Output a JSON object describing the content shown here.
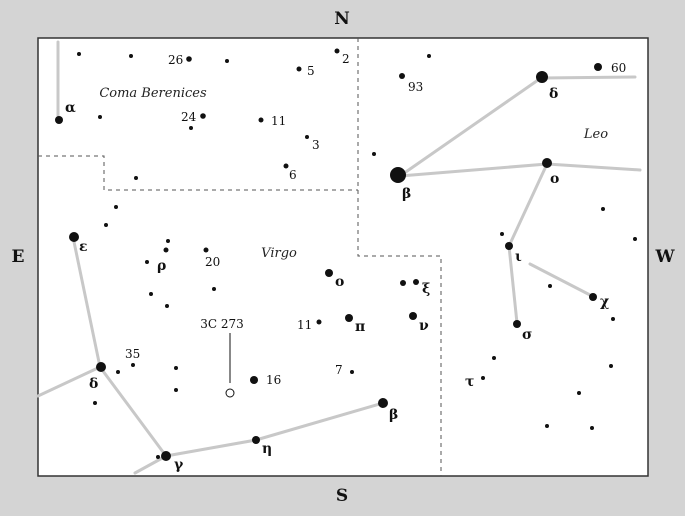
{
  "compass": {
    "north": "N",
    "south": "S",
    "east": "E",
    "west": "W"
  },
  "constellations": {
    "coma": "Coma Berenices",
    "leo": "Leo",
    "virgo": "Virgo"
  },
  "quasar": {
    "label": "3C 273"
  },
  "labels": {
    "alpha": "α",
    "num26": "26",
    "num5": "5",
    "num2": "2",
    "num93": "93",
    "delta_leo": "δ",
    "num60": "60",
    "num24": "24",
    "num11_coma": "11",
    "num3": "3",
    "num6": "6",
    "beta_leo": "β",
    "omicron_leo": "ο",
    "epsilon": "ε",
    "rho": "ρ",
    "num20": "20",
    "omicron_vir": "ο",
    "xi": "ξ",
    "iota": "ι",
    "chi": "χ",
    "num11_vir": "11",
    "pi": "π",
    "nu": "ν",
    "sigma": "σ",
    "num35": "35",
    "delta_vir": "δ",
    "num7": "7",
    "tau": "τ",
    "num16": "16",
    "beta_vir": "β",
    "eta": "η",
    "gamma": "γ"
  },
  "colors": {
    "background": "#d4d4d4",
    "chart_fill": "#ffffff",
    "star": "#111111",
    "stick": "#c8c8c8",
    "boundary": "#555555"
  }
}
